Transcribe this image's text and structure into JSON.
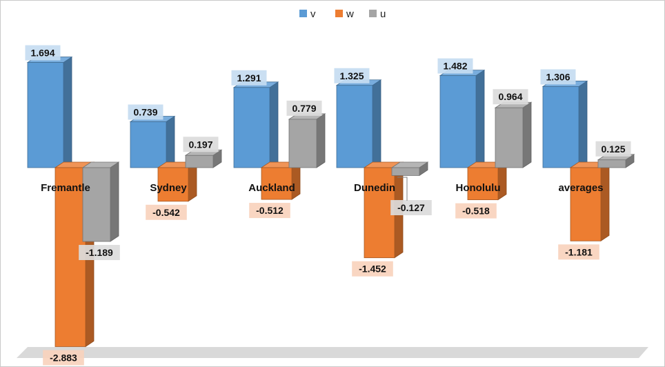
{
  "chart_data": {
    "type": "bar",
    "title": "",
    "xlabel": "",
    "ylabel": "",
    "categories": [
      "Fremantle",
      "Sydney",
      "Auckland",
      "Dunedin",
      "Honolulu",
      "averages"
    ],
    "series": [
      {
        "name": "v",
        "values": [
          1.694,
          0.739,
          1.291,
          1.325,
          1.482,
          1.306
        ]
      },
      {
        "name": "w",
        "values": [
          -2.883,
          -0.542,
          -0.512,
          -1.452,
          -0.518,
          -1.181
        ]
      },
      {
        "name": "u",
        "values": [
          -1.189,
          0.197,
          0.779,
          -0.127,
          0.964,
          0.125
        ]
      }
    ],
    "data_labels": [
      [
        "1.694",
        "0.739",
        "1.291",
        "1.325",
        "1.482",
        "1.306"
      ],
      [
        "-2.883",
        "-0.542",
        "-0.512",
        "-1.452",
        "-0.518",
        "-1.181"
      ],
      [
        "-1.189",
        "0.197",
        "0.779",
        "-0.127",
        "0.964",
        "0.125"
      ]
    ],
    "legend_position": "top-center",
    "grid": false,
    "three_d": true,
    "colors": {
      "v": "#5b9bd5",
      "w": "#ed7d31",
      "u": "#a5a5a5",
      "v_label_bg": "#c6dcf1",
      "w_label_bg": "#f8d3bd",
      "u_label_bg": "#dbdbdb",
      "floor": "#d9d9d9"
    }
  }
}
